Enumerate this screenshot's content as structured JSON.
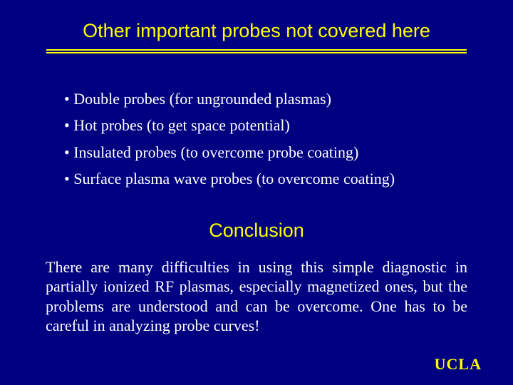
{
  "colors": {
    "background": "#000080",
    "heading": "#ffff00",
    "body_text": "#ffffff",
    "underline": "#ffff00",
    "logo": "#ffff00"
  },
  "typography": {
    "heading_font": "Arial",
    "body_font": "Times New Roman",
    "title_fontsize": 27,
    "bullet_fontsize": 22,
    "body_fontsize": 22,
    "logo_fontsize": 22
  },
  "title": "Other important probes not covered here",
  "bullets": [
    "Double probes (for ungrounded plasmas)",
    "Hot probes (to get space potential)",
    "Insulated probes (to overcome probe coating)",
    "Surface plasma wave probes (to overcome coating)"
  ],
  "subtitle": "Conclusion",
  "body": "There are many difficulties in using this simple diagnostic in partially ionized RF plasmas, especially magnetized ones, but the problems are understood and can be overcome.  One has to be careful in analyzing probe curves!",
  "logo": "UCLA"
}
